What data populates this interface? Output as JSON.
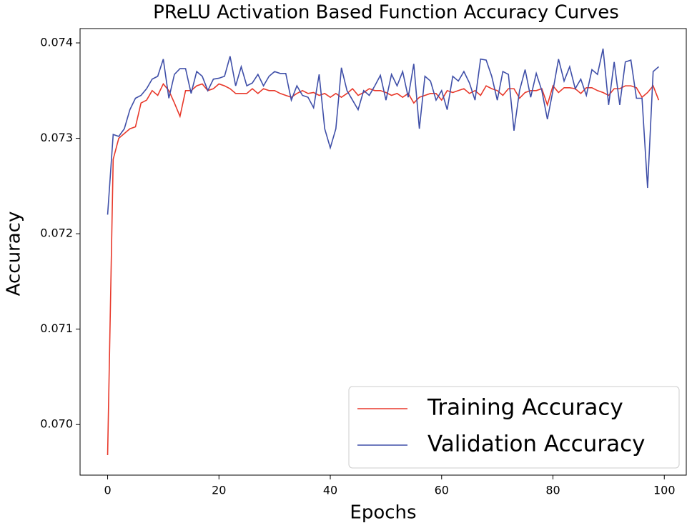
{
  "chart_data": {
    "type": "line",
    "title": "PReLU Activation Based Function Accuracy Curves",
    "xlabel": "Epochs",
    "ylabel": "Accuracy",
    "x": [
      0,
      1,
      2,
      3,
      4,
      5,
      6,
      7,
      8,
      9,
      10,
      11,
      12,
      13,
      14,
      15,
      16,
      17,
      18,
      19,
      20,
      21,
      22,
      23,
      24,
      25,
      26,
      27,
      28,
      29,
      30,
      31,
      32,
      33,
      34,
      35,
      36,
      37,
      38,
      39,
      40,
      41,
      42,
      43,
      44,
      45,
      46,
      47,
      48,
      49,
      50,
      51,
      52,
      53,
      54,
      55,
      56,
      57,
      58,
      59,
      60,
      61,
      62,
      63,
      64,
      65,
      66,
      67,
      68,
      69,
      70,
      71,
      72,
      73,
      74,
      75,
      76,
      77,
      78,
      79,
      80,
      81,
      82,
      83,
      84,
      85,
      86,
      87,
      88,
      89,
      90,
      91,
      92,
      93,
      94,
      95,
      96,
      97,
      98,
      99
    ],
    "series": [
      {
        "name": "Training Accuracy",
        "color": "#e8392b",
        "values": [
          0.06968,
          0.07278,
          0.073,
          0.07305,
          0.0731,
          0.07312,
          0.07337,
          0.0734,
          0.0735,
          0.07345,
          0.07357,
          0.0735,
          0.07337,
          0.07323,
          0.0735,
          0.0735,
          0.07355,
          0.07357,
          0.0735,
          0.07352,
          0.07357,
          0.07355,
          0.07352,
          0.07347,
          0.07347,
          0.07347,
          0.07352,
          0.07347,
          0.07352,
          0.0735,
          0.0735,
          0.07347,
          0.07345,
          0.07343,
          0.07347,
          0.0735,
          0.07347,
          0.07348,
          0.07345,
          0.07347,
          0.07343,
          0.07347,
          0.07343,
          0.07347,
          0.07352,
          0.07345,
          0.07348,
          0.07352,
          0.0735,
          0.0735,
          0.07348,
          0.07345,
          0.07347,
          0.07343,
          0.07347,
          0.07337,
          0.07343,
          0.07345,
          0.07347,
          0.07347,
          0.0734,
          0.0735,
          0.07348,
          0.0735,
          0.07352,
          0.07347,
          0.0735,
          0.07345,
          0.07355,
          0.07352,
          0.0735,
          0.07345,
          0.07352,
          0.07352,
          0.07342,
          0.07348,
          0.0735,
          0.0735,
          0.07352,
          0.07335,
          0.07355,
          0.07348,
          0.07353,
          0.07353,
          0.07352,
          0.07347,
          0.07353,
          0.07353,
          0.0735,
          0.07348,
          0.07345,
          0.07352,
          0.07352,
          0.07355,
          0.07355,
          0.07353,
          0.07343,
          0.07348,
          0.07355,
          0.0734
        ]
      },
      {
        "name": "Validation Accuracy",
        "color": "#3f4fa8",
        "values": [
          0.0722,
          0.07304,
          0.07302,
          0.0731,
          0.0733,
          0.07342,
          0.07345,
          0.07352,
          0.07362,
          0.07365,
          0.07383,
          0.07342,
          0.07367,
          0.07373,
          0.07373,
          0.07347,
          0.0737,
          0.07365,
          0.0735,
          0.07362,
          0.07363,
          0.07365,
          0.07386,
          0.07355,
          0.07375,
          0.07355,
          0.07358,
          0.07367,
          0.07355,
          0.07365,
          0.0737,
          0.07368,
          0.07368,
          0.0734,
          0.07355,
          0.07345,
          0.07343,
          0.07332,
          0.07367,
          0.0731,
          0.0729,
          0.0731,
          0.07374,
          0.0735,
          0.0734,
          0.0733,
          0.0735,
          0.07345,
          0.07355,
          0.07366,
          0.0734,
          0.07367,
          0.07355,
          0.0737,
          0.07343,
          0.07378,
          0.0731,
          0.07365,
          0.0736,
          0.0734,
          0.0735,
          0.0733,
          0.07365,
          0.0736,
          0.0737,
          0.07358,
          0.0734,
          0.07383,
          0.07382,
          0.07365,
          0.0734,
          0.0737,
          0.07367,
          0.07308,
          0.0735,
          0.07372,
          0.07343,
          0.07368,
          0.0735,
          0.0732,
          0.0735,
          0.07383,
          0.0736,
          0.07375,
          0.07352,
          0.07362,
          0.07345,
          0.07372,
          0.07367,
          0.07394,
          0.07335,
          0.0738,
          0.07335,
          0.0738,
          0.07382,
          0.07342,
          0.07342,
          0.07248,
          0.0737,
          0.07375
        ]
      }
    ],
    "xlim": [
      -4.95,
      103.95
    ],
    "xticks": [
      0,
      20,
      40,
      60,
      80,
      100
    ],
    "ylim": [
      0.06947,
      0.07415
    ],
    "yticks": [
      {
        "value": 0.07,
        "label": "0.070"
      },
      0.071,
      0.072,
      0.073,
      0.074
    ],
    "legend": "lower right"
  }
}
